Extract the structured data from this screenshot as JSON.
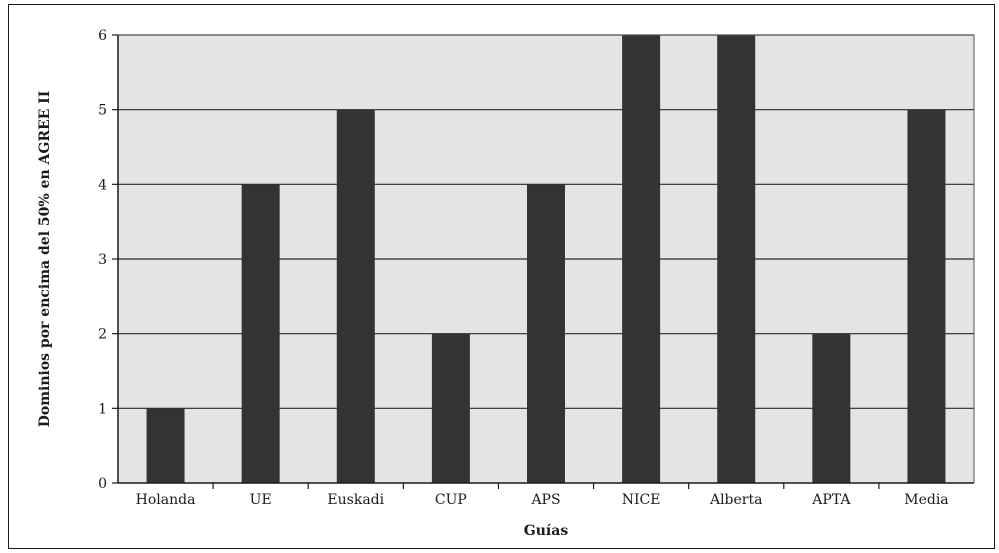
{
  "chart_data": {
    "type": "bar",
    "title": "",
    "xlabel": "Guías",
    "ylabel": "Dominios por encima del 50% en AGREE II",
    "categories": [
      "Holanda",
      "UE",
      "Euskadi",
      "CUP",
      "APS",
      "NICE",
      "Alberta",
      "APTA",
      "Media"
    ],
    "values": [
      1,
      4,
      5,
      2,
      4,
      6,
      6,
      2,
      5
    ],
    "ylim": [
      0,
      6
    ],
    "yticks": [
      0,
      1,
      2,
      3,
      4,
      5,
      6
    ],
    "grid": "horizontal",
    "legend": "none",
    "colors": {
      "bar": "#333333",
      "plot_background": "#e4e4e4",
      "gridline": "#2a2a2a",
      "axis": "#1a1a1a"
    }
  }
}
